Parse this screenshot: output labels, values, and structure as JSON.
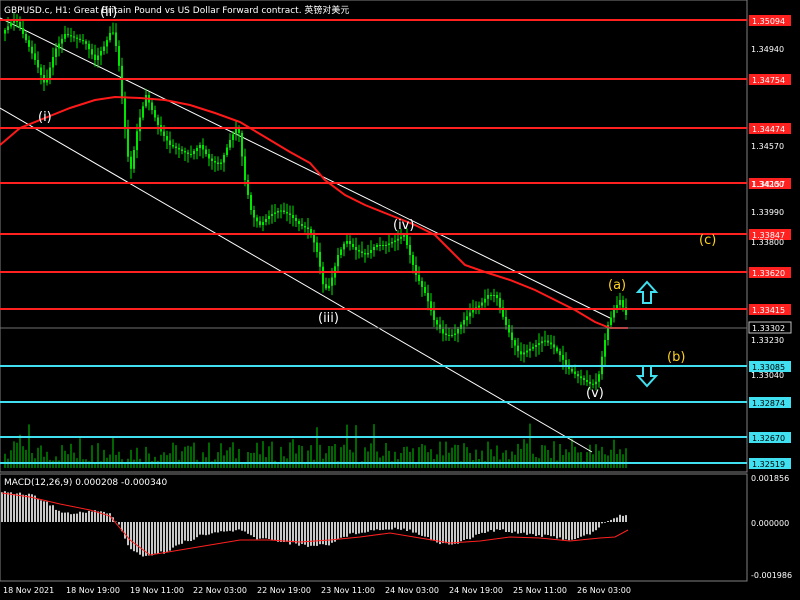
{
  "header": {
    "title": "GBPUSD.c, H1:  Great Britain Pound vs US Dollar Forward contract. 英镑对美元"
  },
  "macd": {
    "label": "MACD(12,26,9) 0.000208 -0.000340",
    "axis": [
      "0.001856",
      "0.000000",
      "-0.001986"
    ]
  },
  "price_axis": [
    "1.34940",
    "1.34570",
    "1.34200",
    "1.33990",
    "1.33800",
    "1.33230",
    "1.33040"
  ],
  "levels": [
    {
      "value": "1.35094",
      "color": "#ff2020"
    },
    {
      "value": "1.34754",
      "color": "#ff2020"
    },
    {
      "value": "1.34474",
      "color": "#ff2020"
    },
    {
      "value": "1.34157",
      "color": "#ff2020"
    },
    {
      "value": "1.33847",
      "color": "#ff2020"
    },
    {
      "value": "1.33620",
      "color": "#ff2020"
    },
    {
      "value": "1.33415",
      "color": "#ff2020"
    },
    {
      "value": "1.33085",
      "color": "#40e0f0"
    },
    {
      "value": "1.32874",
      "color": "#40e0f0"
    },
    {
      "value": "1.32670",
      "color": "#40e0f0"
    },
    {
      "value": "1.32519",
      "color": "#40e0f0"
    }
  ],
  "current_price": "1.33302",
  "time_axis": [
    "18 Nov 2021",
    "18 Nov 19:00",
    "19 Nov 11:00",
    "22 Nov 03:00",
    "22 Nov 19:00",
    "23 Nov 11:00",
    "24 Nov 03:00",
    "24 Nov 19:00",
    "25 Nov 11:00",
    "26 Nov 03:00"
  ],
  "waves": {
    "i": "(i)",
    "ii": "(ii)",
    "iii": "(iii)",
    "iv": "(iv)",
    "v": "(v)",
    "a": "(a)",
    "b": "(b)",
    "c": "(c)"
  },
  "colors": {
    "candles": "#00e600",
    "ma": "#ff1a1a",
    "channel": "#ffffff",
    "arrow": "#40e0f0",
    "wave_gold": "#ffd21e",
    "volume": "#00cc00",
    "macd_hist": "#c8c8c8",
    "macd_signal": "#ff2020"
  }
}
